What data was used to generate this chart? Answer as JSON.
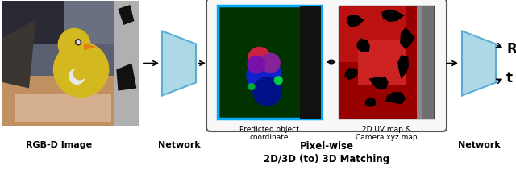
{
  "bg_color": "#ffffff",
  "fig_width": 6.4,
  "fig_height": 2.28,
  "network1_label": "Network",
  "network2_label": "Network",
  "box_label_bold": "Pixel-wise\n2D/3D (to) 3D Matching",
  "sub_label1": "Predicted object\ncoordinate",
  "sub_label2": "2D UV map &\nCamera xyz map",
  "rgb_label": "RGB-D Image",
  "r_label": "R",
  "t_label": "t",
  "trapezoid_color": "#add8e6",
  "trapezoid_edge": "#5badd4",
  "inner_box1_face": "#003300",
  "inner_box1_edge": "#00aaff",
  "inner_box2_face": "#990000",
  "big_box_edge": "#555555"
}
